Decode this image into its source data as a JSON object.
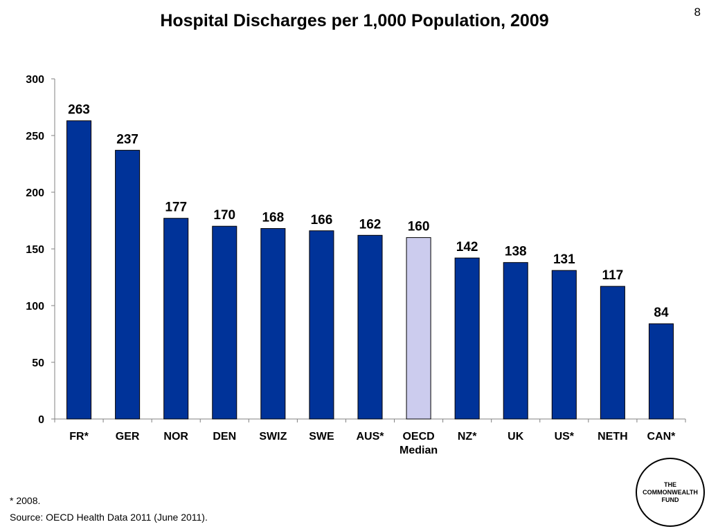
{
  "page_number": "8",
  "footnote": "* 2008.",
  "source": "Source: OECD Health Data 2011 (June 2011).",
  "logo": {
    "line1": "THE",
    "line2": "COMMONWEALTH",
    "line3": "FUND"
  },
  "colors": {
    "bar": "#003399",
    "highlight_bar": "#ccccee",
    "axis": "#808080"
  },
  "chart_data": {
    "type": "bar",
    "title": "Hospital Discharges per 1,000 Population, 2009",
    "categories": [
      "FR*",
      "GER",
      "NOR",
      "DEN",
      "SWIZ",
      "SWE",
      "AUS*",
      "OECD Median",
      "NZ*",
      "UK",
      "US*",
      "NETH",
      "CAN*"
    ],
    "values": [
      263,
      237,
      177,
      170,
      168,
      166,
      162,
      160,
      142,
      138,
      131,
      117,
      84
    ],
    "highlighted_category": "OECD Median",
    "data_labels": true,
    "xlabel": "",
    "ylabel": "",
    "ylim": [
      0,
      300
    ],
    "yticks": [
      0,
      50,
      100,
      150,
      200,
      250,
      300
    ],
    "grid": false,
    "legend": false
  }
}
